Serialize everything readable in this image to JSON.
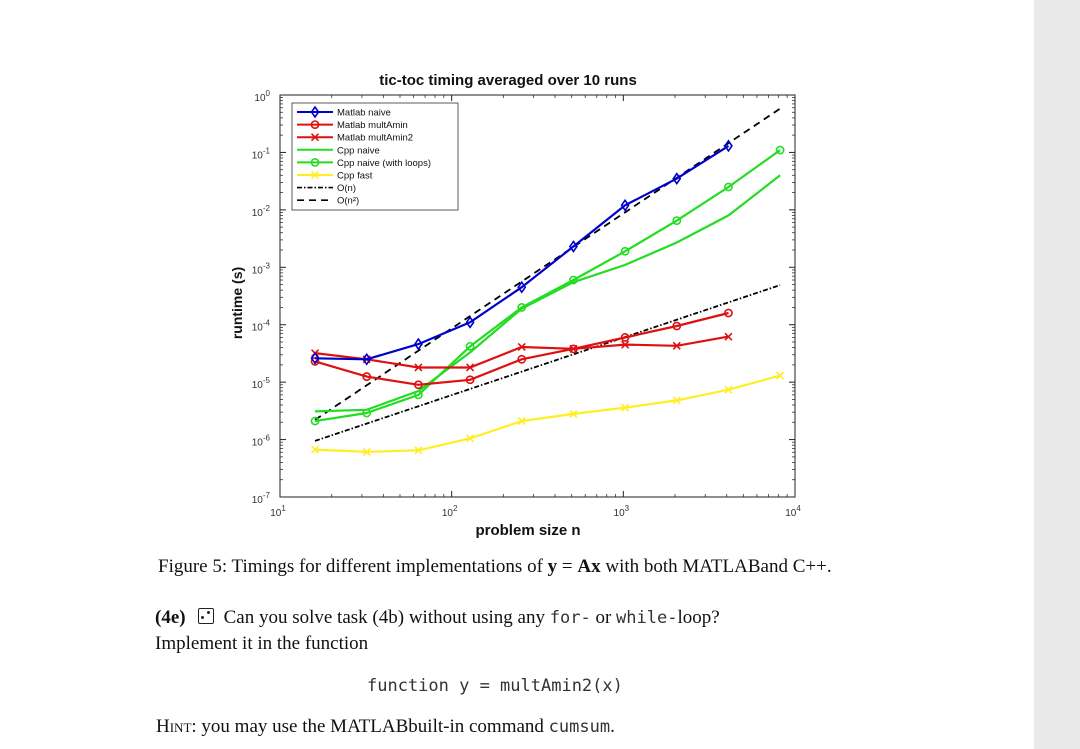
{
  "chart_data": {
    "type": "line",
    "title": "tic-toc timing averaged over 10 runs",
    "xlabel": "problem size n",
    "ylabel": "runtime (s)",
    "xscale": "log",
    "yscale": "log",
    "xlim": [
      10,
      10000
    ],
    "ylim": [
      1e-07,
      1
    ],
    "x_ticks": [
      {
        "v": 10,
        "b": "10",
        "e": "1"
      },
      {
        "v": 100,
        "b": "10",
        "e": "2"
      },
      {
        "v": 1000,
        "b": "10",
        "e": "3"
      },
      {
        "v": 10000,
        "b": "10",
        "e": "4"
      }
    ],
    "y_ticks": [
      {
        "v": 1,
        "b": "10",
        "e": "0"
      },
      {
        "v": 0.1,
        "b": "10",
        "e": "-1"
      },
      {
        "v": 0.01,
        "b": "10",
        "e": "-2"
      },
      {
        "v": 0.001,
        "b": "10",
        "e": "-3"
      },
      {
        "v": 0.0001,
        "b": "10",
        "e": "-4"
      },
      {
        "v": 1e-05,
        "b": "10",
        "e": "-5"
      },
      {
        "v": 1e-06,
        "b": "10",
        "e": "-6"
      },
      {
        "v": 1e-07,
        "b": "10",
        "e": "-7"
      }
    ],
    "legend_position": "top-left",
    "series": [
      {
        "name": "Matlab naive",
        "color": "#0000cc",
        "marker": "diamond",
        "dash": "none",
        "x": [
          16,
          32,
          64,
          128,
          256,
          512,
          1024,
          2048,
          4096
        ],
        "y": [
          2.6e-05,
          2.5e-05,
          4.6e-05,
          0.00011,
          0.00045,
          0.0023,
          0.012,
          0.035,
          0.13
        ]
      },
      {
        "name": "Matlab multAmin",
        "color": "#dd1111",
        "marker": "circle",
        "dash": "none",
        "x": [
          16,
          32,
          64,
          128,
          256,
          512,
          1024,
          2048,
          4096
        ],
        "y": [
          2.3e-05,
          1.25e-05,
          9e-06,
          1.1e-05,
          2.5e-05,
          3.8e-05,
          6e-05,
          9.5e-05,
          0.00016
        ]
      },
      {
        "name": "Matlab multAmin2",
        "color": "#dd1111",
        "marker": "x",
        "dash": "none",
        "x": [
          16,
          32,
          64,
          128,
          256,
          512,
          1024,
          2048,
          4096
        ],
        "y": [
          3.2e-05,
          2.5e-05,
          1.8e-05,
          1.8e-05,
          4.1e-05,
          3.8e-05,
          4.5e-05,
          4.3e-05,
          6.2e-05
        ]
      },
      {
        "name": "Cpp naive",
        "color": "#22dd22",
        "marker": "none",
        "dash": "none",
        "x": [
          16,
          32,
          64,
          128,
          256,
          512,
          1024,
          2048,
          4096,
          8192
        ],
        "y": [
          3.1e-06,
          3.3e-06,
          7e-06,
          3.3e-05,
          0.00019,
          0.00055,
          0.0011,
          0.0027,
          0.008,
          0.04
        ]
      },
      {
        "name": "Cpp naive (with loops)",
        "color": "#22dd22",
        "marker": "circle",
        "dash": "none",
        "x": [
          16,
          32,
          64,
          128,
          256,
          512,
          1024,
          2048,
          4096,
          8192
        ],
        "y": [
          2.1e-06,
          2.9e-06,
          6e-06,
          4.2e-05,
          0.0002,
          0.0006,
          0.0019,
          0.0065,
          0.025,
          0.11
        ]
      },
      {
        "name": "Cpp fast",
        "color": "#ffee22",
        "marker": "x",
        "dash": "none",
        "x": [
          16,
          32,
          64,
          128,
          256,
          512,
          1024,
          2048,
          4096,
          8192
        ],
        "y": [
          6.7e-07,
          6.1e-07,
          6.5e-07,
          1.05e-06,
          2.1e-06,
          2.8e-06,
          3.6e-06,
          4.8e-06,
          7.4e-06,
          1.3e-05
        ]
      },
      {
        "name": "O(n)",
        "color": "#000000",
        "marker": "none",
        "dash": "dashdot",
        "x": [
          16,
          8192
        ],
        "y": [
          9.5e-07,
          0.00049
        ]
      },
      {
        "name": "O(n²)",
        "color": "#000000",
        "marker": "none",
        "dash": "dashed",
        "x": [
          16,
          8192
        ],
        "y": [
          2.2e-06,
          0.58
        ]
      }
    ]
  },
  "caption": {
    "label": "Figure 5:",
    "text_pre": " Timings for different implementations of ",
    "formula_y": "y",
    "formula_eq": " = ",
    "formula_Ax": "Ax",
    "text_post": " with both MATLABand C++."
  },
  "task": {
    "number": "(4e)",
    "text_pre": "Can you solve task (4b) without using any ",
    "code_for": "for-",
    "text_mid": " or ",
    "code_while": "while-",
    "text_post": "loop?",
    "line2": "Implement it in the function"
  },
  "code_line": "function y = multAmin2(x)",
  "hint": {
    "label": "Hint:",
    "text_pre": " you may use the MATLABbuilt-in command ",
    "command": "cumsum",
    "text_post": "."
  }
}
